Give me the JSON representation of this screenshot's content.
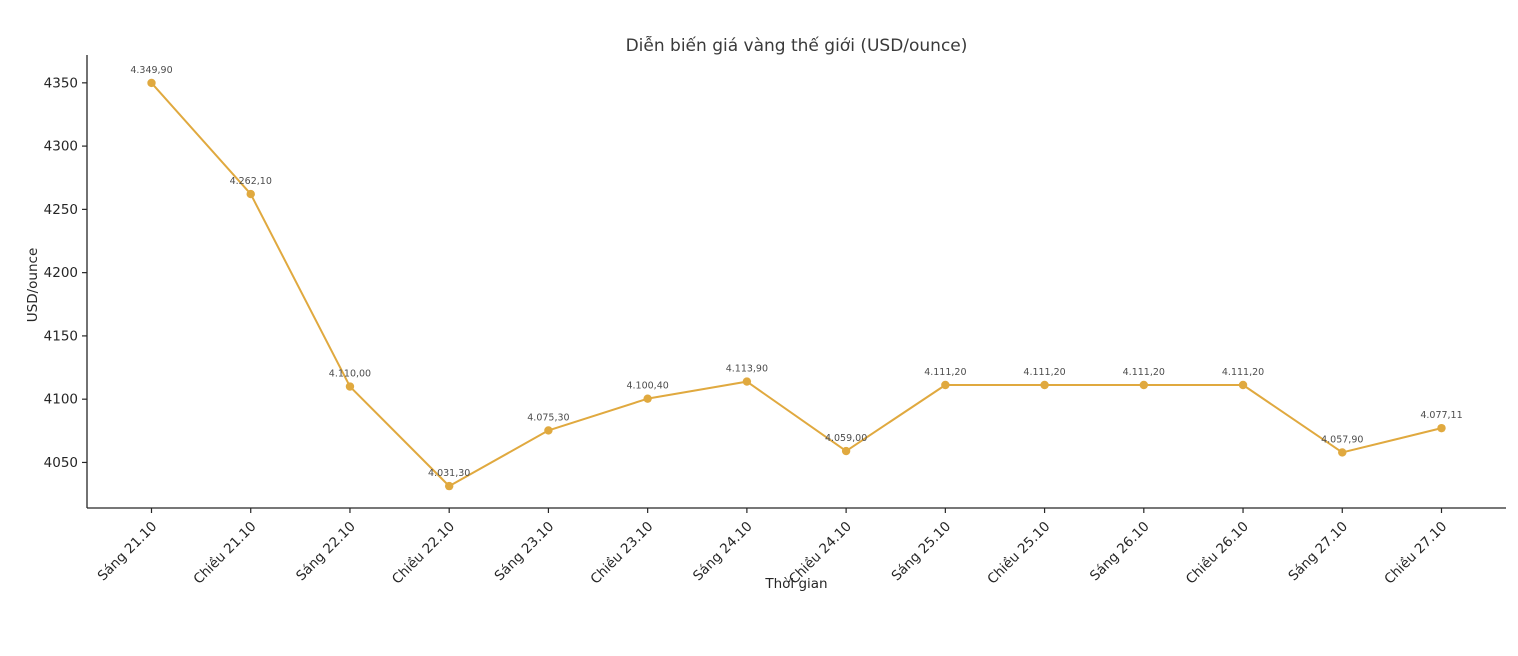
{
  "chart_data": {
    "type": "line",
    "title": "Diễn biến giá vàng thế giới (USD/ounce)",
    "xlabel": "Thời gian",
    "ylabel": "USD/ounce",
    "categories": [
      "Sáng 21.10",
      "Chiều 21.10",
      "Sáng 22.10",
      "Chiều 22.10",
      "Sáng 23.10",
      "Chiều 23.10",
      "Sáng 24.10",
      "Chiều 24.10",
      "Sáng 25.10",
      "Chiều 25.10",
      "Sáng 26.10",
      "Chiều 26.10",
      "Sáng 27.10",
      "Chiều 27.10"
    ],
    "values": [
      4349.9,
      4262.1,
      4110.0,
      4031.3,
      4075.3,
      4100.4,
      4113.9,
      4059.0,
      4111.2,
      4111.2,
      4111.2,
      4111.2,
      4057.9,
      4077.11
    ],
    "point_labels": [
      "4.349,90",
      "4.262,10",
      "4.110,00",
      "4.031,30",
      "4.075,30",
      "4.100,40",
      "4.113,90",
      "4.059,00",
      "4.111,20",
      "4.111,20",
      "4.111,20",
      "4.111,20",
      "4.057,90",
      "4.077,11"
    ],
    "yticks": [
      4050,
      4100,
      4150,
      4200,
      4250,
      4300,
      4350
    ],
    "ylim": [
      4014,
      4372
    ],
    "grid": false,
    "legend": "none",
    "x_tick_rotation_deg": 45,
    "line_color": "#e0a93f",
    "marker_color": "#e0a93f",
    "axis_color": "#262626",
    "tick_label_color": "#262626",
    "point_label_color": "#4d4d4d",
    "background_color": "#ffffff"
  }
}
